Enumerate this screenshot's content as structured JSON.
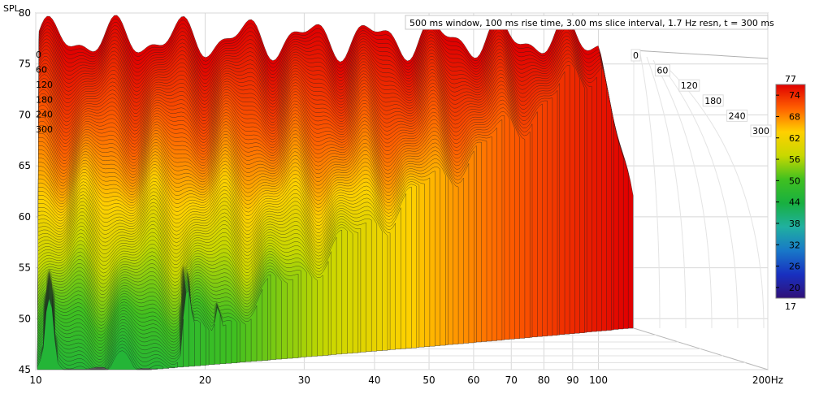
{
  "chart_data": {
    "type": "waterfall",
    "info_text": "500 ms window, 100 ms rise time, 3.00 ms slice interval, 1.7 Hz resn, t = 300 ms",
    "y_axis": {
      "label": "SPL",
      "ticks": [
        "80",
        "75",
        "70",
        "65",
        "60",
        "55",
        "50",
        "45"
      ],
      "ylim": [
        45,
        80
      ]
    },
    "x_axis": {
      "scale": "log",
      "ticks": [
        "10",
        "20",
        "30",
        "40",
        "50",
        "60",
        "70",
        "80",
        "90",
        "100",
        "200Hz"
      ],
      "xlim": [
        10,
        200
      ]
    },
    "time_axis": {
      "unit": "ms",
      "ticks": [
        "0",
        "60",
        "120",
        "180",
        "240",
        "300"
      ],
      "range": [
        0,
        300
      ]
    },
    "colorbar": {
      "min_label": "17",
      "max_label": "77",
      "ticks": [
        "74",
        "68",
        "62",
        "56",
        "50",
        "44",
        "38",
        "32",
        "26",
        "20"
      ],
      "colors": [
        "#e00000",
        "#ff6000",
        "#ffd000",
        "#c8d800",
        "#40c020",
        "#18b040",
        "#20b0a0",
        "#1878c8",
        "#1830c0",
        "#301078"
      ]
    },
    "slices": {
      "count": 100,
      "first_slice_level_db": 77.5,
      "last_slice_level_db": 46,
      "low_freq_modes": [
        {
          "freq_hz": 10.5,
          "peak_db": 61.5
        },
        {
          "freq_hz": 18.5,
          "peak_db": 62
        },
        {
          "freq_hz": 21,
          "peak_db": 57.5
        }
      ]
    }
  }
}
